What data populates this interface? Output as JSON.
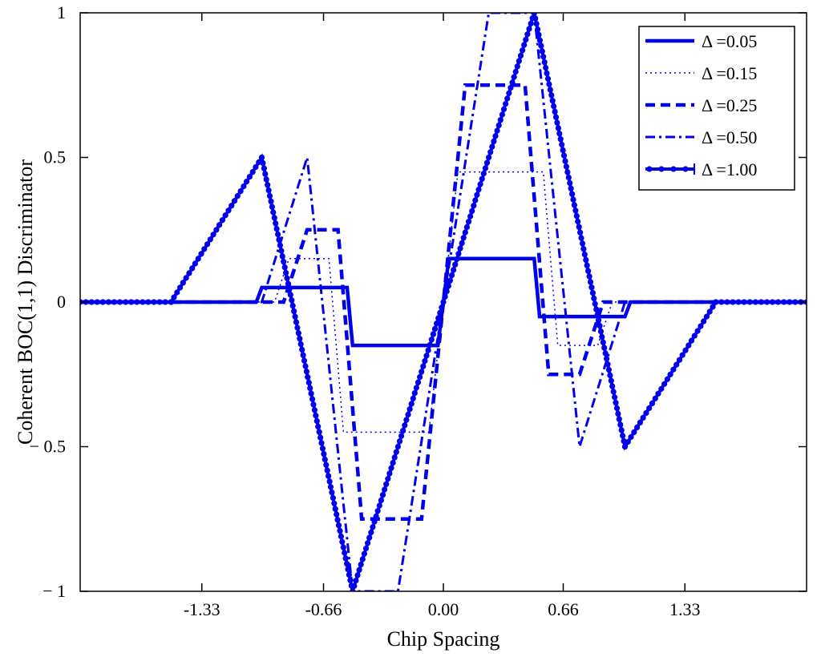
{
  "chart_data": {
    "type": "line",
    "title": "",
    "xlabel": "Chip Spacing",
    "ylabel": "Coherent BOC(1,1) Discriminator",
    "xlim": [
      -2,
      2
    ],
    "ylim": [
      -1,
      1
    ],
    "x_ticks": [
      -1.33,
      -0.66,
      0.0,
      0.66,
      1.33
    ],
    "x_tick_labels": [
      "-1.33",
      "-0.66",
      "0.00",
      "0.66",
      "1.33"
    ],
    "y_ticks": [
      -1,
      -0.5,
      0,
      0.5,
      1
    ],
    "y_tick_labels": [
      "− 1",
      "− 0.5",
      "0",
      "0.5",
      "1"
    ],
    "grid": false,
    "legend_position": "top-right",
    "color": "#0000ee",
    "series": [
      {
        "name": "Δ =0.05",
        "style": "solid",
        "points": [
          [
            -2,
            0
          ],
          [
            -1.03,
            0
          ],
          [
            -1,
            0.05
          ],
          [
            -0.53,
            0.05
          ],
          [
            -0.5,
            -0.15
          ],
          [
            -0.03,
            -0.15
          ],
          [
            0.03,
            0.15
          ],
          [
            0.5,
            0.15
          ],
          [
            0.53,
            -0.05
          ],
          [
            1.0,
            -0.05
          ],
          [
            1.03,
            0
          ],
          [
            2,
            0
          ]
        ]
      },
      {
        "name": "Δ =0.15",
        "style": "dotted",
        "points": [
          [
            -2,
            0
          ],
          [
            -0.93,
            0
          ],
          [
            -0.85,
            0.15
          ],
          [
            -0.63,
            0.15
          ],
          [
            -0.55,
            -0.45
          ],
          [
            -0.08,
            -0.45
          ],
          [
            0.08,
            0.45
          ],
          [
            0.55,
            0.45
          ],
          [
            0.63,
            -0.15
          ],
          [
            0.85,
            -0.15
          ],
          [
            0.93,
            0
          ],
          [
            2,
            0
          ]
        ]
      },
      {
        "name": "Δ =0.25",
        "style": "dashed",
        "points": [
          [
            -2,
            0
          ],
          [
            -0.88,
            0
          ],
          [
            -0.75,
            0.25
          ],
          [
            -0.58,
            0.25
          ],
          [
            -0.45,
            -0.75
          ],
          [
            -0.12,
            -0.75
          ],
          [
            0.12,
            0.75
          ],
          [
            0.45,
            0.75
          ],
          [
            0.58,
            -0.25
          ],
          [
            0.75,
            -0.25
          ],
          [
            0.88,
            0
          ],
          [
            2,
            0
          ]
        ]
      },
      {
        "name": "Δ =0.50",
        "style": "dashdot",
        "points": [
          [
            -2,
            0
          ],
          [
            -1.0,
            0
          ],
          [
            -0.75,
            0.5
          ],
          [
            -0.5,
            -1.0
          ],
          [
            -0.25,
            -1.0
          ],
          [
            0.25,
            1.0
          ],
          [
            0.5,
            1.0
          ],
          [
            0.75,
            -0.5
          ],
          [
            1.0,
            0
          ],
          [
            2,
            0
          ]
        ]
      },
      {
        "name": "Δ =1.00",
        "style": "solid-marker",
        "points": [
          [
            -2,
            0
          ],
          [
            -1.5,
            0
          ],
          [
            -1.0,
            0.5
          ],
          [
            -0.5,
            -1.0
          ],
          [
            0.5,
            1.0
          ],
          [
            1.0,
            -0.5
          ],
          [
            1.5,
            0
          ],
          [
            2,
            0
          ]
        ]
      }
    ]
  }
}
